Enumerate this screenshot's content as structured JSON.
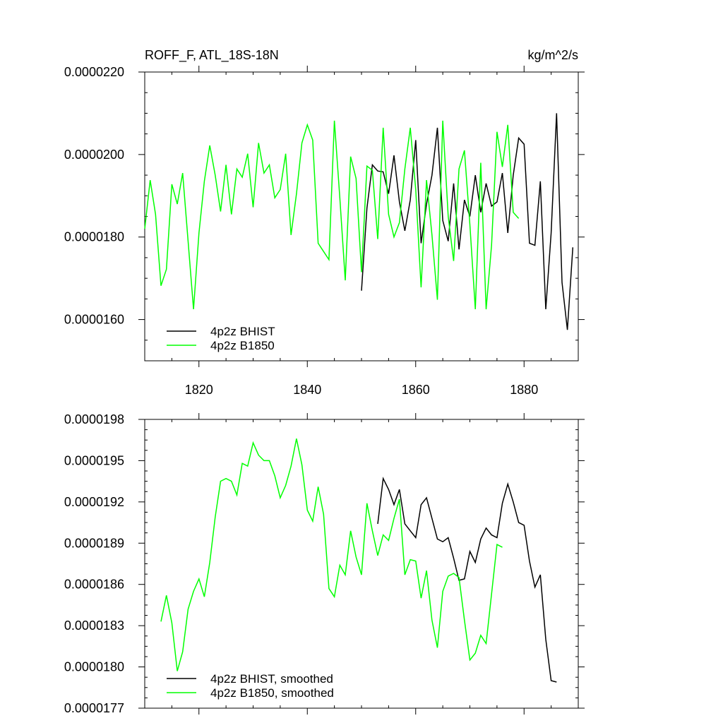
{
  "chart_data": [
    {
      "type": "line",
      "title": "ROFF_F, ATL_18S-18N",
      "units": "kg/m^2/s",
      "xlim": [
        1810,
        1890
      ],
      "ylim": [
        1.5e-05,
        2.2e-05
      ],
      "xticks": [
        1820,
        1840,
        1860,
        1880
      ],
      "xtick_labels": [
        "1820",
        "1840",
        "1860",
        "1880"
      ],
      "yticks": [
        1.6e-05,
        1.8e-05,
        2e-05,
        2.2e-05
      ],
      "ytick_labels": [
        "0.0000160",
        "0.0000180",
        "0.0000200",
        "0.0000220"
      ],
      "legend": "bottom-left",
      "series": [
        {
          "name": "4p2z BHIST",
          "color": "#000000",
          "x": [
            1850,
            1851,
            1852,
            1853,
            1854,
            1855,
            1856,
            1857,
            1858,
            1859,
            1860,
            1861,
            1862,
            1863,
            1864,
            1865,
            1866,
            1867,
            1868,
            1869,
            1870,
            1871,
            1872,
            1873,
            1874,
            1875,
            1876,
            1877,
            1878,
            1879,
            1880,
            1881,
            1882,
            1883,
            1884,
            1885,
            1886,
            1887,
            1888,
            1889
          ],
          "y": [
            1.67e-05,
            1.87e-05,
            1.975e-05,
            1.96e-05,
            1.958e-05,
            1.905e-05,
            1.998e-05,
            1.885e-05,
            1.815e-05,
            1.89e-05,
            2.035e-05,
            1.785e-05,
            1.88e-05,
            1.95e-05,
            2.065e-05,
            1.84e-05,
            1.79e-05,
            1.93e-05,
            1.77e-05,
            1.89e-05,
            1.85e-05,
            1.95e-05,
            1.86e-05,
            1.93e-05,
            1.875e-05,
            1.885e-05,
            1.955e-05,
            1.81e-05,
            1.95e-05,
            2.04e-05,
            2.025e-05,
            1.785e-05,
            1.78e-05,
            1.935e-05,
            1.625e-05,
            1.81e-05,
            2.1e-05,
            1.69e-05,
            1.575e-05,
            1.775e-05
          ]
        },
        {
          "name": "4p2z B1850",
          "color": "#00ff00",
          "x": [
            1810,
            1811,
            1812,
            1813,
            1814,
            1815,
            1816,
            1817,
            1818,
            1819,
            1820,
            1821,
            1822,
            1823,
            1824,
            1825,
            1826,
            1827,
            1828,
            1829,
            1830,
            1831,
            1832,
            1833,
            1834,
            1835,
            1836,
            1837,
            1838,
            1839,
            1840,
            1841,
            1842,
            1843,
            1844,
            1845,
            1846,
            1847,
            1848,
            1849,
            1850,
            1851,
            1852,
            1853,
            1854,
            1855,
            1856,
            1857,
            1858,
            1859,
            1860,
            1861,
            1862,
            1863,
            1864,
            1865,
            1866,
            1867,
            1868,
            1869,
            1870,
            1871,
            1872,
            1873,
            1874,
            1875,
            1876,
            1877,
            1878,
            1879
          ],
          "y": [
            1.82e-05,
            1.938e-05,
            1.855e-05,
            1.682e-05,
            1.722e-05,
            1.928e-05,
            1.88e-05,
            1.955e-05,
            1.79e-05,
            1.625e-05,
            1.81e-05,
            1.935e-05,
            2.022e-05,
            1.95e-05,
            1.862e-05,
            1.975e-05,
            1.855e-05,
            1.965e-05,
            1.945e-05,
            2.002e-05,
            1.872e-05,
            2.028e-05,
            1.955e-05,
            1.975e-05,
            1.895e-05,
            1.915e-05,
            2.002e-05,
            1.805e-05,
            1.905e-05,
            2.028e-05,
            2.072e-05,
            2.035e-05,
            1.785e-05,
            1.765e-05,
            1.745e-05,
            2.082e-05,
            1.895e-05,
            1.695e-05,
            1.995e-05,
            1.942e-05,
            1.715e-05,
            1.972e-05,
            1.962e-05,
            1.795e-05,
            2.065e-05,
            1.855e-05,
            1.8e-05,
            1.835e-05,
            1.965e-05,
            2.065e-05,
            1.915e-05,
            1.678e-05,
            1.938e-05,
            1.805e-05,
            1.648e-05,
            2.082e-05,
            1.85e-05,
            1.742e-05,
            1.965e-05,
            2.01e-05,
            1.83e-05,
            1.625e-05,
            1.98e-05,
            1.625e-05,
            1.78e-05,
            2.055e-05,
            1.97e-05,
            2.072e-05,
            1.86e-05,
            1.845e-05
          ]
        }
      ]
    },
    {
      "type": "line",
      "xlim": [
        1810,
        1890
      ],
      "ylim": [
        1.77e-05,
        1.98e-05
      ],
      "xticks": [
        1820,
        1840,
        1860,
        1880
      ],
      "yticks": [
        1.77e-05,
        1.8e-05,
        1.83e-05,
        1.86e-05,
        1.89e-05,
        1.92e-05,
        1.95e-05,
        1.98e-05
      ],
      "ytick_labels": [
        "0.0000177",
        "0.0000180",
        "0.0000183",
        "0.0000186",
        "0.0000189",
        "0.0000192",
        "0.0000195",
        "0.0000198"
      ],
      "legend": "bottom-left",
      "series": [
        {
          "name": "4p2z BHIST, smoothed",
          "color": "#000000",
          "x": [
            1853,
            1854,
            1855,
            1856,
            1857,
            1858,
            1859,
            1860,
            1861,
            1862,
            1863,
            1864,
            1865,
            1866,
            1867,
            1868,
            1869,
            1870,
            1871,
            1872,
            1873,
            1874,
            1875,
            1876,
            1877,
            1878,
            1879,
            1880,
            1881,
            1882,
            1883,
            1884,
            1885,
            1886
          ],
          "y": [
            1.904e-05,
            1.937e-05,
            1.929e-05,
            1.918e-05,
            1.929e-05,
            1.904e-05,
            1.899e-05,
            1.894e-05,
            1.918e-05,
            1.923e-05,
            1.908e-05,
            1.893e-05,
            1.891e-05,
            1.894e-05,
            1.879e-05,
            1.863e-05,
            1.864e-05,
            1.884e-05,
            1.876e-05,
            1.893e-05,
            1.901e-05,
            1.896e-05,
            1.894e-05,
            1.919e-05,
            1.933e-05,
            1.92e-05,
            1.905e-05,
            1.903e-05,
            1.877e-05,
            1.858e-05,
            1.867e-05,
            1.82e-05,
            1.79e-05,
            1.789e-05
          ]
        },
        {
          "name": "4p2z B1850, smoothed",
          "color": "#00ff00",
          "x": [
            1813,
            1814,
            1815,
            1816,
            1817,
            1818,
            1819,
            1820,
            1821,
            1822,
            1823,
            1824,
            1825,
            1826,
            1827,
            1828,
            1829,
            1830,
            1831,
            1832,
            1833,
            1834,
            1835,
            1836,
            1837,
            1838,
            1839,
            1840,
            1841,
            1842,
            1843,
            1844,
            1845,
            1846,
            1847,
            1848,
            1849,
            1850,
            1851,
            1852,
            1853,
            1854,
            1855,
            1856,
            1857,
            1858,
            1859,
            1860,
            1861,
            1862,
            1863,
            1864,
            1865,
            1866,
            1867,
            1868,
            1869,
            1870,
            1871,
            1872,
            1873,
            1874,
            1875,
            1876
          ],
          "y": [
            1.833e-05,
            1.852e-05,
            1.832e-05,
            1.797e-05,
            1.811e-05,
            1.842e-05,
            1.855e-05,
            1.864e-05,
            1.851e-05,
            1.876e-05,
            1.909e-05,
            1.935e-05,
            1.937e-05,
            1.935e-05,
            1.925e-05,
            1.948e-05,
            1.946e-05,
            1.963e-05,
            1.954e-05,
            1.95e-05,
            1.95e-05,
            1.939e-05,
            1.923e-05,
            1.932e-05,
            1.946e-05,
            1.966e-05,
            1.947e-05,
            1.914e-05,
            1.906e-05,
            1.931e-05,
            1.911e-05,
            1.857e-05,
            1.851e-05,
            1.874e-05,
            1.867e-05,
            1.899e-05,
            1.88e-05,
            1.867e-05,
            1.919e-05,
            1.899e-05,
            1.881e-05,
            1.896e-05,
            1.892e-05,
            1.908e-05,
            1.922e-05,
            1.867e-05,
            1.878e-05,
            1.877e-05,
            1.85e-05,
            1.87e-05,
            1.834e-05,
            1.814e-05,
            1.855e-05,
            1.866e-05,
            1.868e-05,
            1.865e-05,
            1.834e-05,
            1.805e-05,
            1.81e-05,
            1.823e-05,
            1.817e-05,
            1.853e-05,
            1.889e-05,
            1.887e-05
          ]
        }
      ]
    }
  ]
}
